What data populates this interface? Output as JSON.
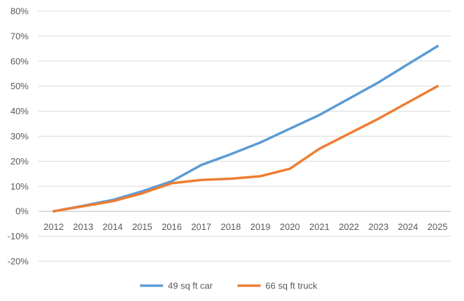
{
  "chart_data": {
    "type": "line",
    "title": "",
    "xlabel": "",
    "ylabel": "",
    "x": [
      "2012",
      "2013",
      "2014",
      "2015",
      "2016",
      "2017",
      "2018",
      "2019",
      "2020",
      "2021",
      "2022",
      "2023",
      "2024",
      "2025"
    ],
    "ylim": [
      -20,
      80
    ],
    "yticks": [
      -20,
      -10,
      0,
      10,
      20,
      30,
      40,
      50,
      60,
      70,
      80
    ],
    "ytick_labels": [
      "-20%",
      "-10%",
      "0%",
      "10%",
      "20%",
      "30%",
      "40%",
      "50%",
      "60%",
      "70%",
      "80%"
    ],
    "grid": true,
    "legend_position": "bottom",
    "series": [
      {
        "name": "49 sq ft car",
        "color": "#5B9BD5",
        "values": [
          0,
          2.2,
          4.5,
          8,
          12,
          18.5,
          22.8,
          27.5,
          33,
          38.5,
          45,
          51.5,
          58.8,
          66
        ]
      },
      {
        "name": "66 sq ft truck",
        "color": "#ED7D31",
        "values": [
          0,
          2,
          4,
          7.2,
          11.2,
          12.5,
          13,
          14,
          17,
          25,
          31,
          37,
          43.5,
          50
        ]
      }
    ]
  },
  "colors": {
    "grid": "#D9D9D9",
    "text": "#595959",
    "background": "#FFFFFF"
  }
}
